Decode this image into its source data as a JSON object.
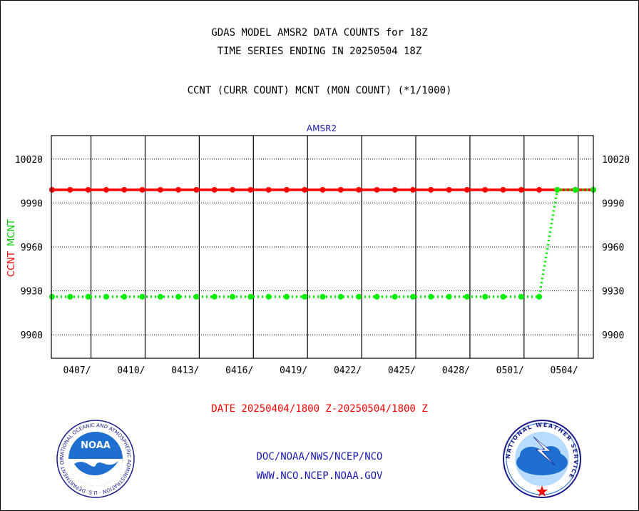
{
  "header": {
    "title_line1": "GDAS MODEL AMSR2 DATA COUNTS for 18Z",
    "title_line2": "TIME SERIES ENDING IN 20250504 18Z",
    "subtitle": "CCNT (CURR COUNT) MCNT (MON COUNT) (*1/1000)"
  },
  "footer": {
    "date_range": "DATE 20250404/1800 Z-20250504/1800 Z",
    "org_path": "DOC/NOAA/NWS/NCEP/NCO",
    "website": "WWW.NCO.NCEP.NOAA.GOV",
    "noaa_logo_text": "NOAA",
    "noaa_ring_text": "NATIONAL OCEANIC AND ATMOSPHERIC ADMINISTRATION · U.S. DEPARTMENT OF COMMERCE",
    "nws_ring_text": "NATIONAL WEATHER SERVICE"
  },
  "chart_data": {
    "type": "line",
    "title": "AMSR2",
    "ylabel_ccnt": "CCNT",
    "ylabel_mcnt": "MCNT",
    "ylim": [
      9884,
      10036
    ],
    "yticks": [
      9900,
      9930,
      9960,
      9990,
      10020
    ],
    "xticks": [
      "0407/",
      "0410/",
      "0413/",
      "0416/",
      "0419/",
      "0422/",
      "0425/",
      "0428/",
      "0501/",
      "0504/"
    ],
    "grid": true,
    "colors": {
      "ccnt": "#ff0000",
      "mcnt": "#00ee00"
    },
    "series": [
      {
        "name": "CCNT",
        "values": [
          9999,
          9999,
          9999,
          9999,
          9999,
          9999,
          9999,
          9999,
          9999,
          9999,
          9999,
          9999,
          9999,
          9999,
          9999,
          9999,
          9999,
          9999,
          9999,
          9999,
          9999,
          9999,
          9999,
          9999,
          9999,
          9999,
          9999,
          9999,
          9999,
          9999,
          9999
        ]
      },
      {
        "name": "MCNT",
        "values": [
          9926,
          9926,
          9926,
          9926,
          9926,
          9926,
          9926,
          9926,
          9926,
          9926,
          9926,
          9926,
          9926,
          9926,
          9926,
          9926,
          9926,
          9926,
          9926,
          9926,
          9926,
          9926,
          9926,
          9926,
          9926,
          9926,
          9926,
          9926,
          9999,
          9999,
          9999
        ]
      }
    ]
  }
}
